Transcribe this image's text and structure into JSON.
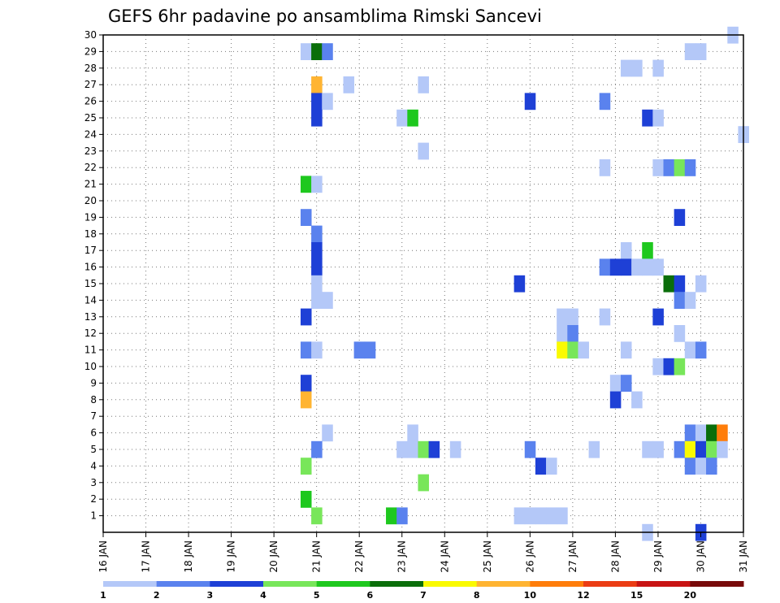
{
  "chart_data": {
    "type": "heatmap",
    "title": "GEFS 6hr padavine po ansamblima Rimski Sancevi",
    "xlabel": "",
    "ylabel": "",
    "x_ticks": [
      "16 JAN",
      "17 JAN",
      "18 JAN",
      "19 JAN",
      "20 JAN",
      "21 JAN",
      "22 JAN",
      "23 JAN",
      "24 JAN",
      "25 JAN",
      "26 JAN",
      "27 JAN",
      "28 JAN",
      "29 JAN",
      "30 JAN",
      "31 JAN"
    ],
    "y_ticks": [
      "1",
      "2",
      "3",
      "4",
      "5",
      "6",
      "7",
      "8",
      "9",
      "10",
      "11",
      "12",
      "13",
      "14",
      "15",
      "16",
      "17",
      "18",
      "19",
      "20",
      "21",
      "22",
      "23",
      "24",
      "25",
      "26",
      "27",
      "28",
      "29",
      "30"
    ],
    "x_range_days": [
      0,
      15
    ],
    "y_range": [
      0,
      30
    ],
    "time_step_hours": 6,
    "grid": true,
    "legend_placement": "bottom",
    "legend": {
      "labels": [
        "1",
        "2",
        "3",
        "4",
        "5",
        "6",
        "7",
        "8",
        "10",
        "12",
        "15",
        "20"
      ],
      "colors": [
        "#b4c8f8",
        "#5a82ee",
        "#1e40d6",
        "#78e65a",
        "#1ec81e",
        "#0a6e0a",
        "#fafa00",
        "#ffb432",
        "#ff7d0a",
        "#eb3c14",
        "#c81414",
        "#780a0a"
      ]
    },
    "cells": [
      {
        "day": 4.75,
        "member": 29,
        "level": 1
      },
      {
        "day": 5.0,
        "member": 29,
        "level": 6
      },
      {
        "day": 5.25,
        "member": 29,
        "level": 2
      },
      {
        "day": 5.0,
        "member": 27,
        "level": 8
      },
      {
        "day": 5.75,
        "member": 27,
        "level": 1
      },
      {
        "day": 7.5,
        "member": 27,
        "level": 1
      },
      {
        "day": 5.0,
        "member": 26,
        "level": 3
      },
      {
        "day": 5.25,
        "member": 26,
        "level": 1
      },
      {
        "day": 10.0,
        "member": 26,
        "level": 3
      },
      {
        "day": 11.75,
        "member": 26,
        "level": 2
      },
      {
        "day": 5.0,
        "member": 25,
        "level": 3
      },
      {
        "day": 7.0,
        "member": 25,
        "level": 1
      },
      {
        "day": 7.25,
        "member": 25,
        "level": 5
      },
      {
        "day": 12.75,
        "member": 25,
        "level": 3
      },
      {
        "day": 13.0,
        "member": 25,
        "level": 1
      },
      {
        "day": 15.0,
        "member": 24,
        "level": 1
      },
      {
        "day": 7.5,
        "member": 23,
        "level": 1
      },
      {
        "day": 11.75,
        "member": 22,
        "level": 1
      },
      {
        "day": 13.0,
        "member": 22,
        "level": 1
      },
      {
        "day": 13.25,
        "member": 22,
        "level": 2
      },
      {
        "day": 13.5,
        "member": 22,
        "level": 4
      },
      {
        "day": 13.75,
        "member": 22,
        "level": 2
      },
      {
        "day": 4.75,
        "member": 21,
        "level": 5
      },
      {
        "day": 5.0,
        "member": 21,
        "level": 1
      },
      {
        "day": 4.75,
        "member": 19,
        "level": 2
      },
      {
        "day": 13.5,
        "member": 19,
        "level": 3
      },
      {
        "day": 5.0,
        "member": 18,
        "level": 2
      },
      {
        "day": 5.0,
        "member": 17,
        "level": 3
      },
      {
        "day": 12.25,
        "member": 17,
        "level": 1
      },
      {
        "day": 12.75,
        "member": 17,
        "level": 5
      },
      {
        "day": 5.0,
        "member": 16,
        "level": 3
      },
      {
        "day": 11.75,
        "member": 16,
        "level": 2
      },
      {
        "day": 12.0,
        "member": 16,
        "level": 3
      },
      {
        "day": 12.25,
        "member": 16,
        "level": 3
      },
      {
        "day": 12.5,
        "member": 16,
        "level": 1
      },
      {
        "day": 12.75,
        "member": 16,
        "level": 1
      },
      {
        "day": 13.0,
        "member": 16,
        "level": 1
      },
      {
        "day": 5.0,
        "member": 15,
        "level": 1
      },
      {
        "day": 9.75,
        "member": 15,
        "level": 3
      },
      {
        "day": 13.25,
        "member": 15,
        "level": 6
      },
      {
        "day": 13.5,
        "member": 15,
        "level": 3
      },
      {
        "day": 14.0,
        "member": 15,
        "level": 1
      },
      {
        "day": 5.0,
        "member": 14,
        "level": 1
      },
      {
        "day": 5.25,
        "member": 14,
        "level": 1
      },
      {
        "day": 13.5,
        "member": 14,
        "level": 2
      },
      {
        "day": 13.75,
        "member": 14,
        "level": 1
      },
      {
        "day": 4.75,
        "member": 13,
        "level": 3
      },
      {
        "day": 10.75,
        "member": 13,
        "level": 1
      },
      {
        "day": 11.0,
        "member": 13,
        "level": 1
      },
      {
        "day": 11.75,
        "member": 13,
        "level": 1
      },
      {
        "day": 13.0,
        "member": 13,
        "level": 3
      },
      {
        "day": 10.75,
        "member": 12,
        "level": 1
      },
      {
        "day": 11.0,
        "member": 12,
        "level": 2
      },
      {
        "day": 13.5,
        "member": 12,
        "level": 1
      },
      {
        "day": 4.75,
        "member": 11,
        "level": 2
      },
      {
        "day": 5.0,
        "member": 11,
        "level": 1
      },
      {
        "day": 6.0,
        "member": 11,
        "level": 2
      },
      {
        "day": 6.25,
        "member": 11,
        "level": 2
      },
      {
        "day": 10.75,
        "member": 11,
        "level": 7
      },
      {
        "day": 11.0,
        "member": 11,
        "level": 4
      },
      {
        "day": 11.25,
        "member": 11,
        "level": 1
      },
      {
        "day": 12.25,
        "member": 11,
        "level": 1
      },
      {
        "day": 13.75,
        "member": 11,
        "level": 1
      },
      {
        "day": 14.0,
        "member": 11,
        "level": 2
      },
      {
        "day": 13.0,
        "member": 10,
        "level": 1
      },
      {
        "day": 13.25,
        "member": 10,
        "level": 3
      },
      {
        "day": 13.5,
        "member": 10,
        "level": 4
      },
      {
        "day": 4.75,
        "member": 9,
        "level": 3
      },
      {
        "day": 12.0,
        "member": 9,
        "level": 1
      },
      {
        "day": 12.25,
        "member": 9,
        "level": 2
      },
      {
        "day": 4.75,
        "member": 8,
        "level": 8
      },
      {
        "day": 12.0,
        "member": 8,
        "level": 3
      },
      {
        "day": 12.5,
        "member": 8,
        "level": 1
      },
      {
        "day": 5.25,
        "member": 6,
        "level": 1
      },
      {
        "day": 7.25,
        "member": 6,
        "level": 1
      },
      {
        "day": 13.75,
        "member": 6,
        "level": 2
      },
      {
        "day": 14.0,
        "member": 6,
        "level": 1
      },
      {
        "day": 14.25,
        "member": 6,
        "level": 6
      },
      {
        "day": 14.5,
        "member": 6,
        "level": 9
      },
      {
        "day": 5.0,
        "member": 5,
        "level": 2
      },
      {
        "day": 7.0,
        "member": 5,
        "level": 1
      },
      {
        "day": 7.25,
        "member": 5,
        "level": 1
      },
      {
        "day": 7.5,
        "member": 5,
        "level": 4
      },
      {
        "day": 7.75,
        "member": 5,
        "level": 3
      },
      {
        "day": 8.25,
        "member": 5,
        "level": 1
      },
      {
        "day": 10.0,
        "member": 5,
        "level": 2
      },
      {
        "day": 11.5,
        "member": 5,
        "level": 1
      },
      {
        "day": 12.75,
        "member": 5,
        "level": 1
      },
      {
        "day": 13.0,
        "member": 5,
        "level": 1
      },
      {
        "day": 13.5,
        "member": 5,
        "level": 2
      },
      {
        "day": 13.75,
        "member": 5,
        "level": 7
      },
      {
        "day": 14.0,
        "member": 5,
        "level": 3
      },
      {
        "day": 14.25,
        "member": 5,
        "level": 4
      },
      {
        "day": 14.5,
        "member": 5,
        "level": 1
      },
      {
        "day": 4.75,
        "member": 4,
        "level": 4
      },
      {
        "day": 10.25,
        "member": 4,
        "level": 3
      },
      {
        "day": 10.5,
        "member": 4,
        "level": 1
      },
      {
        "day": 13.75,
        "member": 4,
        "level": 2
      },
      {
        "day": 14.0,
        "member": 4,
        "level": 1
      },
      {
        "day": 14.25,
        "member": 4,
        "level": 2
      },
      {
        "day": 7.5,
        "member": 3,
        "level": 4
      },
      {
        "day": 4.75,
        "member": 2,
        "level": 5
      },
      {
        "day": 5.0,
        "member": 1,
        "level": 4
      },
      {
        "day": 6.75,
        "member": 1,
        "level": 5
      },
      {
        "day": 7.0,
        "member": 1,
        "level": 2
      },
      {
        "day": 9.75,
        "member": 1,
        "level": 1
      },
      {
        "day": 10.0,
        "member": 1,
        "level": 1
      },
      {
        "day": 10.25,
        "member": 1,
        "level": 1
      },
      {
        "day": 10.5,
        "member": 1,
        "level": 1
      },
      {
        "day": 10.75,
        "member": 1,
        "level": 1
      },
      {
        "day": 14.75,
        "member": 30,
        "level": 1
      },
      {
        "day": 12.75,
        "member": 0,
        "level": 1
      },
      {
        "day": 14.0,
        "member": 0,
        "level": 3
      },
      {
        "day": 12.25,
        "member": 28,
        "level": 1
      },
      {
        "day": 12.5,
        "member": 28,
        "level": 1
      },
      {
        "day": 13.0,
        "member": 28,
        "level": 1
      },
      {
        "day": 13.75,
        "member": 29,
        "level": 1
      },
      {
        "day": 14.0,
        "member": 29,
        "level": 1
      }
    ]
  }
}
